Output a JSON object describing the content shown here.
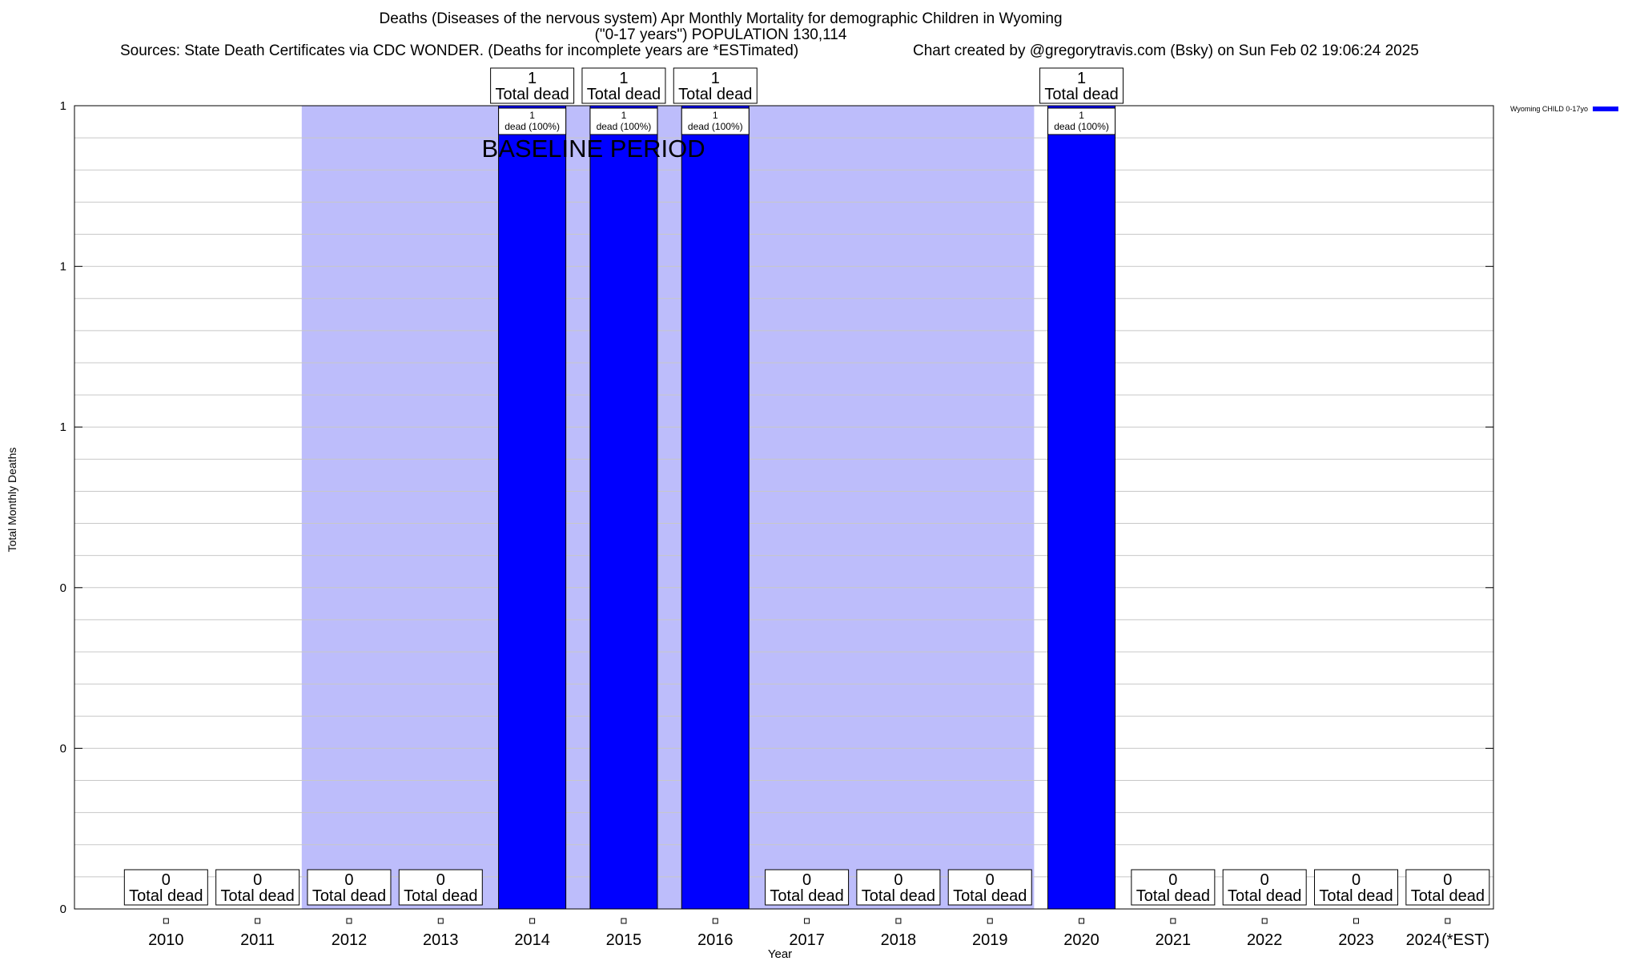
{
  "header": {
    "title_line1": "Deaths (Diseases of the nervous system) Apr Monthly Mortality for demographic Children in Wyoming",
    "title_line2": "(\"0-17 years\") POPULATION 130,114",
    "sources": "Sources: State Death Certificates via CDC WONDER. (Deaths for incomplete years are *ESTimated)",
    "credit": "Chart created by @gregorytravis.com (Bsky) on Sun Feb 02 19:06:24 2025"
  },
  "legend": {
    "label": "Wyoming CHILD 0-17yo",
    "color": "#0000ff"
  },
  "chart_data": {
    "type": "bar",
    "xlabel": "Year",
    "ylabel": "Total Monthly Deaths",
    "ylim": [
      0,
      1
    ],
    "y_tick_labels": [
      "0",
      "0",
      "0",
      "1",
      "1",
      "1"
    ],
    "grid": true,
    "legend_position": "top-right",
    "categories": [
      "2010",
      "2011",
      "2012",
      "2013",
      "2014",
      "2015",
      "2016",
      "2017",
      "2018",
      "2019",
      "2020",
      "2021",
      "2022",
      "2023",
      "2024(*EST)"
    ],
    "series": [
      {
        "name": "Wyoming CHILD 0-17yo",
        "color": "#0000ff",
        "values": [
          0,
          0,
          0,
          0,
          1,
          1,
          1,
          0,
          0,
          0,
          1,
          0,
          0,
          0,
          0
        ]
      }
    ],
    "total_label_suffix": "Total dead",
    "bar_label_text": "dead (100%)",
    "baseline": {
      "label": "BASELINE PERIOD",
      "start": "2012",
      "end": "2019",
      "color": "#bdbdfb"
    }
  }
}
